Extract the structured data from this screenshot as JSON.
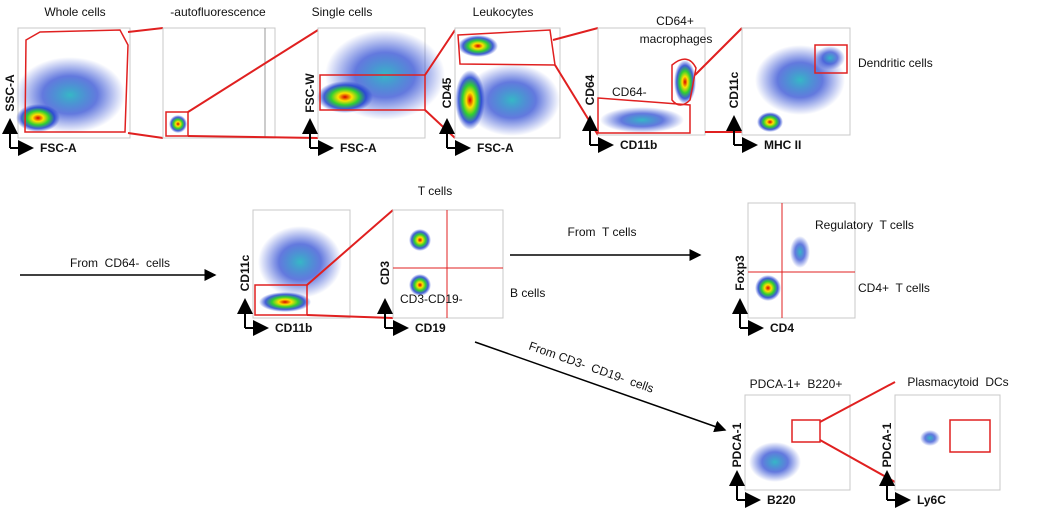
{
  "panels": [
    {
      "title": "Whole cells",
      "y_label": "SSC-A",
      "x_label": "FSC-A"
    },
    {
      "title": "-autofluorescence"
    },
    {
      "title": "Single cells",
      "y_label": "FSC-W",
      "x_label": "FSC-A"
    },
    {
      "title": "Leukocytes",
      "y_label": "CD45",
      "x_label": "FSC-A"
    },
    {
      "title_lines": [
        "CD64+",
        "macrophages"
      ],
      "y_label": "CD64",
      "x_label": "CD11b",
      "annotations": [
        "CD64-"
      ]
    },
    {
      "y_label": "CD11c",
      "x_label": "MHC II",
      "annotations": [
        "Dendritic cells"
      ]
    },
    {
      "y_label": "CD11c",
      "x_label": "CD11b"
    },
    {
      "title": "T cells",
      "y_label": "CD3",
      "x_label": "CD19",
      "annotations": [
        "CD3-CD19-",
        "B cells"
      ]
    },
    {
      "y_label": "Foxp3",
      "x_label": "CD4",
      "annotations": [
        "Regulatory  T cells",
        "CD4+  T cells"
      ]
    },
    {
      "title": "PDCA-1+  B220+",
      "y_label": "PDCA-1",
      "x_label": "B220"
    },
    {
      "title": "Plasmacytoid  DCs",
      "y_label": "PDCA-1",
      "x_label": "Ly6C"
    }
  ],
  "arrows": [
    {
      "label": "From  CD64-  cells"
    },
    {
      "label": "From  T cells"
    },
    {
      "label": "From CD3-  CD19-  cells"
    }
  ]
}
